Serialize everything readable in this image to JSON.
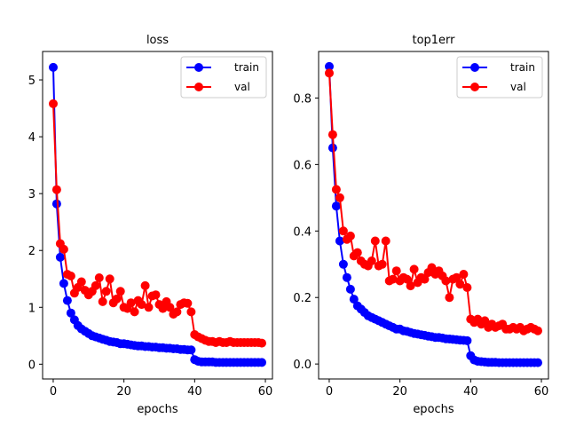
{
  "chart_data": [
    {
      "type": "line",
      "title": "loss",
      "xlabel": "epochs",
      "ylabel": "",
      "xlim": [
        -3,
        62
      ],
      "ylim": [
        -0.26,
        5.5
      ],
      "xticks": [
        0,
        20,
        40,
        60
      ],
      "yticks": [
        0,
        1,
        2,
        3,
        4,
        5
      ],
      "legend": "top-right",
      "series": [
        {
          "name": "train",
          "color": "#0000ff",
          "x": [
            0,
            1,
            2,
            3,
            4,
            5,
            6,
            7,
            8,
            9,
            10,
            11,
            12,
            13,
            14,
            15,
            16,
            17,
            18,
            19,
            20,
            21,
            22,
            23,
            24,
            25,
            26,
            27,
            28,
            29,
            30,
            31,
            32,
            33,
            34,
            35,
            36,
            37,
            38,
            39,
            40,
            41,
            42,
            43,
            44,
            45,
            46,
            47,
            48,
            49,
            50,
            51,
            52,
            53,
            54,
            55,
            56,
            57,
            58,
            59
          ],
          "values": [
            5.22,
            2.82,
            1.88,
            1.42,
            1.12,
            0.9,
            0.78,
            0.68,
            0.62,
            0.58,
            0.54,
            0.5,
            0.48,
            0.46,
            0.44,
            0.42,
            0.4,
            0.39,
            0.38,
            0.36,
            0.36,
            0.35,
            0.34,
            0.33,
            0.32,
            0.32,
            0.31,
            0.31,
            0.3,
            0.3,
            0.29,
            0.29,
            0.28,
            0.28,
            0.27,
            0.27,
            0.26,
            0.26,
            0.25,
            0.25,
            0.08,
            0.05,
            0.04,
            0.04,
            0.04,
            0.04,
            0.03,
            0.03,
            0.03,
            0.03,
            0.03,
            0.03,
            0.03,
            0.03,
            0.03,
            0.03,
            0.03,
            0.03,
            0.03,
            0.03
          ]
        },
        {
          "name": "val",
          "color": "#ff0000",
          "x": [
            0,
            1,
            2,
            3,
            4,
            5,
            6,
            7,
            8,
            9,
            10,
            11,
            12,
            13,
            14,
            15,
            16,
            17,
            18,
            19,
            20,
            21,
            22,
            23,
            24,
            25,
            26,
            27,
            28,
            29,
            30,
            31,
            32,
            33,
            34,
            35,
            36,
            37,
            38,
            39,
            40,
            41,
            42,
            43,
            44,
            45,
            46,
            47,
            48,
            49,
            50,
            51,
            52,
            53,
            54,
            55,
            56,
            57,
            58,
            59
          ],
          "values": [
            4.58,
            3.07,
            2.12,
            2.02,
            1.58,
            1.55,
            1.25,
            1.35,
            1.45,
            1.3,
            1.22,
            1.28,
            1.38,
            1.52,
            1.1,
            1.28,
            1.5,
            1.08,
            1.15,
            1.28,
            1.0,
            0.98,
            1.08,
            0.92,
            1.12,
            1.05,
            1.38,
            1.0,
            1.2,
            1.22,
            1.05,
            0.98,
            1.1,
            1.0,
            0.88,
            0.92,
            1.05,
            1.08,
            1.07,
            0.92,
            0.52,
            0.48,
            0.45,
            0.42,
            0.4,
            0.4,
            0.38,
            0.4,
            0.38,
            0.38,
            0.4,
            0.38,
            0.38,
            0.38,
            0.38,
            0.38,
            0.38,
            0.38,
            0.38,
            0.37
          ]
        }
      ]
    },
    {
      "type": "line",
      "title": "top1err",
      "xlabel": "epochs",
      "ylabel": "",
      "xlim": [
        -3,
        62
      ],
      "ylim": [
        -0.045,
        0.94
      ],
      "xticks": [
        0,
        20,
        40,
        60
      ],
      "yticks": [
        0.0,
        0.2,
        0.4,
        0.6,
        0.8
      ],
      "legend": "top-right",
      "series": [
        {
          "name": "train",
          "color": "#0000ff",
          "x": [
            0,
            1,
            2,
            3,
            4,
            5,
            6,
            7,
            8,
            9,
            10,
            11,
            12,
            13,
            14,
            15,
            16,
            17,
            18,
            19,
            20,
            21,
            22,
            23,
            24,
            25,
            26,
            27,
            28,
            29,
            30,
            31,
            32,
            33,
            34,
            35,
            36,
            37,
            38,
            39,
            40,
            41,
            42,
            43,
            44,
            45,
            46,
            47,
            48,
            49,
            50,
            51,
            52,
            53,
            54,
            55,
            56,
            57,
            58,
            59
          ],
          "values": [
            0.895,
            0.65,
            0.475,
            0.37,
            0.3,
            0.26,
            0.225,
            0.195,
            0.175,
            0.165,
            0.155,
            0.145,
            0.14,
            0.135,
            0.13,
            0.125,
            0.12,
            0.115,
            0.11,
            0.105,
            0.105,
            0.1,
            0.098,
            0.095,
            0.092,
            0.09,
            0.088,
            0.086,
            0.084,
            0.082,
            0.08,
            0.08,
            0.078,
            0.076,
            0.075,
            0.074,
            0.073,
            0.072,
            0.071,
            0.07,
            0.025,
            0.012,
            0.008,
            0.007,
            0.006,
            0.005,
            0.005,
            0.005,
            0.004,
            0.004,
            0.004,
            0.004,
            0.004,
            0.004,
            0.004,
            0.004,
            0.004,
            0.004,
            0.004,
            0.004
          ]
        },
        {
          "name": "val",
          "color": "#ff0000",
          "x": [
            0,
            1,
            2,
            3,
            4,
            5,
            6,
            7,
            8,
            9,
            10,
            11,
            12,
            13,
            14,
            15,
            16,
            17,
            18,
            19,
            20,
            21,
            22,
            23,
            24,
            25,
            26,
            27,
            28,
            29,
            30,
            31,
            32,
            33,
            34,
            35,
            36,
            37,
            38,
            39,
            40,
            41,
            42,
            43,
            44,
            45,
            46,
            47,
            48,
            49,
            50,
            51,
            52,
            53,
            54,
            55,
            56,
            57,
            58,
            59
          ],
          "values": [
            0.875,
            0.69,
            0.525,
            0.5,
            0.4,
            0.375,
            0.385,
            0.325,
            0.335,
            0.31,
            0.3,
            0.295,
            0.31,
            0.37,
            0.295,
            0.3,
            0.37,
            0.25,
            0.255,
            0.28,
            0.25,
            0.26,
            0.255,
            0.235,
            0.285,
            0.245,
            0.26,
            0.255,
            0.275,
            0.29,
            0.27,
            0.28,
            0.265,
            0.25,
            0.2,
            0.255,
            0.26,
            0.24,
            0.27,
            0.23,
            0.135,
            0.125,
            0.135,
            0.12,
            0.13,
            0.11,
            0.12,
            0.11,
            0.115,
            0.12,
            0.105,
            0.105,
            0.11,
            0.105,
            0.11,
            0.1,
            0.105,
            0.11,
            0.105,
            0.1
          ]
        }
      ]
    }
  ]
}
